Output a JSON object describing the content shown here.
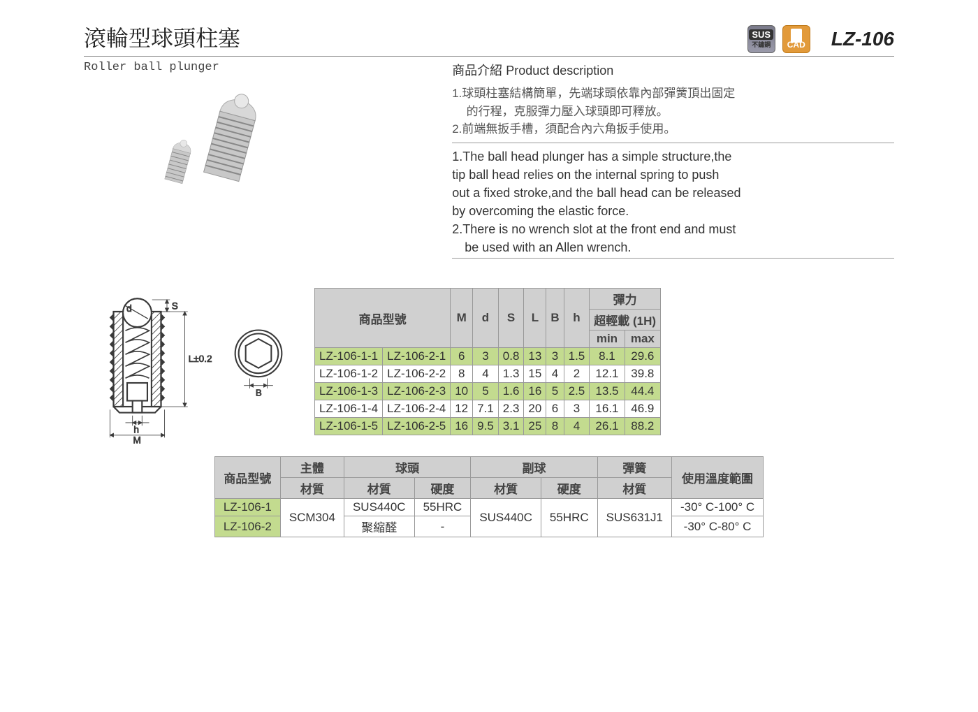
{
  "header": {
    "title_cn": "滾輪型球頭柱塞",
    "subtitle_en": "Roller ball plunger",
    "product_code": "LZ-106",
    "badges": {
      "sus_line1": "SUS",
      "sus_line2": "不鏽鋼",
      "cad": "CAD"
    }
  },
  "description": {
    "heading": "商品介紹 Product description",
    "cn_line1": "1.球頭柱塞結構簡單，先端球頭依靠內部彈簧頂出固定",
    "cn_line1b": "的行程，克服彈力壓入球頭即可釋放。",
    "cn_line2": "2.前端無扳手槽，須配合內六角扳手使用。",
    "en_line1": "1.The ball head plunger has a simple structure,the",
    "en_line2": "tip ball head relies on the internal spring to push",
    "en_line3": "out a fixed stroke,and the ball head can be released",
    "en_line4": "by overcoming the elastic force.",
    "en_line5": "2.There is no wrench slot at the front end and must",
    "en_line6": "be used with an Allen wrench."
  },
  "diagram": {
    "labels": {
      "d": "d",
      "S": "S",
      "L": "L±0.2",
      "h": "h",
      "M": "M",
      "B": "B"
    },
    "colors": {
      "stroke": "#3a3a3a",
      "fill": "#fff",
      "hatch": "#3a3a3a"
    }
  },
  "spec_table": {
    "headers": {
      "model": "商品型號",
      "M": "M",
      "d": "d",
      "S": "S",
      "L": "L",
      "B": "B",
      "h": "h",
      "spring": "彈力",
      "spring_sub": "超輕載 (1H)",
      "min": "min",
      "max": "max"
    },
    "rows": [
      {
        "m1": "LZ-106-1-1",
        "m2": "LZ-106-2-1",
        "M": "6",
        "d": "3",
        "S": "0.8",
        "L": "13",
        "B": "3",
        "h": "1.5",
        "min": "8.1",
        "max": "29.6"
      },
      {
        "m1": "LZ-106-1-2",
        "m2": "LZ-106-2-2",
        "M": "8",
        "d": "4",
        "S": "1.3",
        "L": "15",
        "B": "4",
        "h": "2",
        "min": "12.1",
        "max": "39.8"
      },
      {
        "m1": "LZ-106-1-3",
        "m2": "LZ-106-2-3",
        "M": "10",
        "d": "5",
        "S": "1.6",
        "L": "16",
        "B": "5",
        "h": "2.5",
        "min": "13.5",
        "max": "44.4"
      },
      {
        "m1": "LZ-106-1-4",
        "m2": "LZ-106-2-4",
        "M": "12",
        "d": "7.1",
        "S": "2.3",
        "L": "20",
        "B": "6",
        "h": "3",
        "min": "16.1",
        "max": "46.9"
      },
      {
        "m1": "LZ-106-1-5",
        "m2": "LZ-106-2-5",
        "M": "16",
        "d": "9.5",
        "S": "3.1",
        "L": "25",
        "B": "8",
        "h": "4",
        "min": "26.1",
        "max": "88.2"
      }
    ]
  },
  "material_table": {
    "headers": {
      "model": "商品型號",
      "body": "主體",
      "ball": "球頭",
      "subball": "副球",
      "spring": "彈簧",
      "temp": "使用溫度範圍",
      "material": "材質",
      "hardness": "硬度"
    },
    "rows": [
      {
        "model": "LZ-106-1",
        "body": "SCM304",
        "ball_mat": "SUS440C",
        "ball_hard": "55HRC",
        "sub_mat": "SUS440C",
        "sub_hard": "55HRC",
        "spring": "SUS631J1",
        "temp": "-30° C-100° C"
      },
      {
        "model": "LZ-106-2",
        "body": "SCM304",
        "ball_mat": "聚縮醛",
        "ball_hard": "-",
        "sub_mat": "SUS440C",
        "sub_hard": "55HRC",
        "spring": "SUS631J1",
        "temp": "-30° C-80° C"
      }
    ]
  }
}
